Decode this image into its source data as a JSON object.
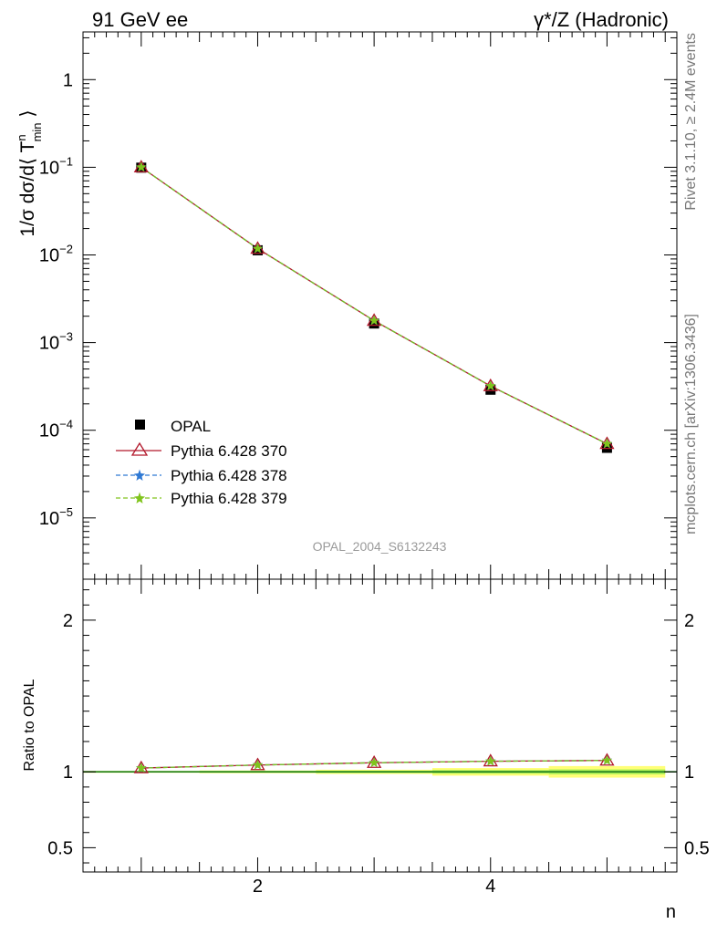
{
  "header": {
    "left_title": "91 GeV ee",
    "right_title": "γ*/Z (Hadronic)"
  },
  "side_labels": {
    "rivet": "Rivet 3.1.10, ≥ 2.4M events",
    "mcplots": "mcplots.cern.ch [arXiv:1306.3436]"
  },
  "watermark": "OPAL_2004_S6132243",
  "legend": [
    {
      "label": "OPAL"
    },
    {
      "label": "Pythia 6.428 370"
    },
    {
      "label": "Pythia 6.428 378"
    },
    {
      "label": "Pythia 6.428 379"
    }
  ],
  "colors": {
    "data": "#000000",
    "py370": "#b2182b",
    "py378": "#2f79d4",
    "py379": "#80c41c",
    "band_inner": "#aaee55",
    "band_outer": "#ffff77",
    "ratio_line": "#1e7d1e"
  },
  "chart_data": [
    {
      "type": "line",
      "panel": "main",
      "ylabel": "1/σ dσ/d⟨ T^n_min ⟩",
      "yscale": "log",
      "ylim": [
        2e-06,
        3.5
      ],
      "xlim": [
        0.5,
        5.6
      ],
      "y_ticks": [
        "1",
        "10^-1",
        "10^-2",
        "10^-3",
        "10^-4",
        "10^-5"
      ],
      "x": [
        1,
        2,
        3,
        4,
        5
      ],
      "series": [
        {
          "name": "OPAL",
          "values": [
            0.099,
            0.0113,
            0.00165,
            0.00029,
            6.3e-05
          ]
        },
        {
          "name": "Pythia 6.428 370",
          "values": [
            0.1,
            0.0118,
            0.00178,
            0.00032,
            7e-05
          ]
        },
        {
          "name": "Pythia 6.428 378",
          "values": [
            0.1,
            0.0118,
            0.00178,
            0.00032,
            7e-05
          ]
        },
        {
          "name": "Pythia 6.428 379",
          "values": [
            0.1,
            0.0118,
            0.00178,
            0.00032,
            7e-05
          ]
        }
      ]
    },
    {
      "type": "line",
      "panel": "ratio",
      "ylabel": "Ratio to OPAL",
      "xlabel": "n",
      "ylim": [
        0.34,
        2.27
      ],
      "xlim": [
        0.5,
        5.6
      ],
      "y_ticks": [
        "0.5",
        "1",
        "2"
      ],
      "x_ticks": [
        "2",
        "4"
      ],
      "x": [
        1,
        2,
        3,
        4,
        5
      ],
      "band_inner": [
        0.005,
        0.006,
        0.008,
        0.012,
        0.016
      ],
      "band_outer": [
        0.006,
        0.009,
        0.014,
        0.025,
        0.038
      ],
      "series": [
        {
          "name": "Pythia 6.428 370",
          "values": [
            1.025,
            1.045,
            1.06,
            1.07,
            1.075
          ]
        },
        {
          "name": "Pythia 6.428 378",
          "values": [
            1.025,
            1.045,
            1.06,
            1.07,
            1.075
          ]
        },
        {
          "name": "Pythia 6.428 379",
          "values": [
            1.025,
            1.045,
            1.06,
            1.07,
            1.075
          ]
        }
      ]
    }
  ]
}
